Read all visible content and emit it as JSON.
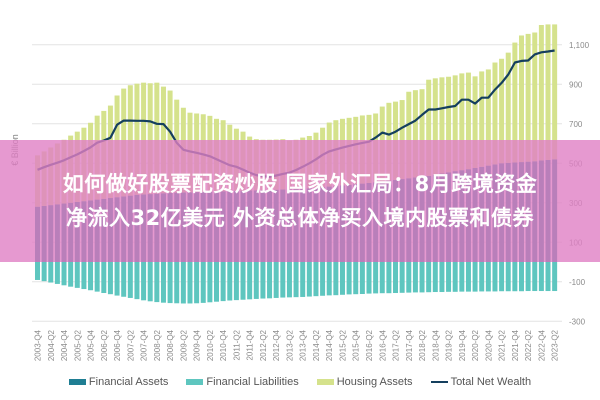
{
  "chart_data": {
    "type": "bar",
    "stacked": true,
    "ylabel": "€ Billion",
    "ylim": [
      -300,
      1250
    ],
    "yticks": [
      1100,
      900,
      700,
      500,
      300,
      100,
      -100,
      -300
    ],
    "ytick_labels": [
      "1,100",
      "900",
      "700",
      "500",
      "300",
      "100",
      "-100",
      "-300"
    ],
    "grid": true,
    "legend_position": "bottom",
    "start_quarter": "2003-Q4",
    "xtick_labels": [
      "2003-Q4",
      "2004-Q2",
      "2004-Q4",
      "2005-Q2",
      "2005-Q4",
      "2006-Q2",
      "2006-Q4",
      "2007-Q2",
      "2007-Q4",
      "2008-Q2",
      "2008-Q4",
      "2009-Q2",
      "2009-Q4",
      "2010-Q2",
      "2010-Q4",
      "2011-Q2",
      "2011-Q4",
      "2012-Q2",
      "2012-Q4",
      "2013-Q2",
      "2013-Q4",
      "2014-Q2",
      "2014-Q4",
      "2015-Q2",
      "2015-Q4",
      "2016-Q2",
      "2016-Q4",
      "2017-Q2",
      "2017-Q4",
      "2018-Q2",
      "2018-Q4",
      "2019-Q2",
      "2019-Q4",
      "2020-Q2",
      "2020-Q4",
      "2021-Q2",
      "2021-Q4",
      "2022-Q2",
      "2022-Q4",
      "2023-Q2"
    ],
    "series": [
      {
        "name": "Financial Assets",
        "kind": "bar",
        "color": "#1f7e93",
        "values": [
          280,
          284,
          288,
          292,
          296,
          300,
          304,
          308,
          312,
          316,
          320,
          324,
          328,
          332,
          336,
          340,
          342,
          344,
          346,
          348,
          350,
          351,
          352,
          353,
          354,
          355,
          356,
          357,
          358,
          359,
          360,
          361,
          362,
          363,
          364,
          365,
          366,
          367,
          368,
          369,
          370,
          373,
          376,
          379,
          382,
          385,
          388,
          391,
          394,
          397,
          400,
          404,
          408,
          412,
          416,
          420,
          424,
          428,
          430,
          436,
          442,
          448,
          454,
          460,
          465,
          470,
          476,
          482,
          488,
          494,
          500,
          502,
          504,
          506,
          508,
          510,
          514,
          517,
          520
        ]
      },
      {
        "name": "Financial Liabilities",
        "kind": "bar",
        "color": "#5ec6bf",
        "values": [
          -91,
          -97,
          -104,
          -111,
          -118,
          -125,
          -131,
          -137,
          -143,
          -150,
          -157,
          -163,
          -170,
          -176,
          -182,
          -188,
          -194,
          -199,
          -203,
          -206,
          -208,
          -209,
          -210,
          -210,
          -209,
          -207,
          -204,
          -201,
          -198,
          -195,
          -193,
          -191,
          -189,
          -187,
          -185,
          -184,
          -182,
          -180,
          -179,
          -178,
          -177,
          -175,
          -173,
          -171,
          -169,
          -168,
          -166,
          -164,
          -163,
          -162,
          -160,
          -159,
          -158,
          -158,
          -157,
          -156,
          -155,
          -154,
          -154,
          -153,
          -152,
          -152,
          -151,
          -151,
          -150,
          -150,
          -150,
          -149,
          -149,
          -149,
          -148,
          -148,
          -148,
          -148,
          -147,
          -147,
          -147,
          -147,
          -147
        ]
      },
      {
        "name": "Housing Assets",
        "kind": "bar",
        "color": "#d5e28c",
        "values": [
          260,
          276,
          292,
          308,
          323,
          340,
          356,
          372,
          393,
          425,
          445,
          468,
          515,
          546,
          559,
          563,
          566,
          561,
          562,
          540,
          518,
          471,
          429,
          403,
          398,
          393,
          384,
          368,
          360,
          336,
          315,
          299,
          273,
          259,
          255,
          254,
          254,
          255,
          247,
          250,
          260,
          265,
          279,
          301,
          324,
          333,
          337,
          339,
          341,
          345,
          345,
          348,
          379,
          394,
          396,
          400,
          438,
          442,
          445,
          487,
          488,
          487,
          484,
          485,
          490,
          489,
          464,
          483,
          487,
          516,
          529,
          558,
          607,
          641,
          647,
          652,
          686,
          686,
          683
        ]
      },
      {
        "name": "Total Net Wealth",
        "kind": "line",
        "color": "#153f5e",
        "values": [
          467,
          480,
          492,
          503,
          515,
          530,
          545,
          562,
          580,
          604,
          615,
          629,
          695,
          716,
          716,
          715,
          715,
          712,
          700,
          698,
          660,
          604,
          568,
          560,
          553,
          545,
          535,
          520,
          505,
          490,
          482,
          468,
          452,
          440,
          435,
          431,
          438,
          446,
          452,
          466,
          482,
          500,
          520,
          543,
          560,
          570,
          579,
          588,
          596,
          603,
          609,
          630,
          655,
          645,
          660,
          680,
          698,
          716,
          745,
          772,
          772,
          778,
          785,
          790,
          822,
          822,
          802,
          832,
          832,
          873,
          907,
          949,
          1010,
          1018,
          1020,
          1051,
          1062,
          1066,
          1071
        ]
      }
    ]
  },
  "legend": [
    {
      "label": "Financial Assets",
      "color": "#1f7e93",
      "shape": "bar"
    },
    {
      "label": "Financial Liabilities",
      "color": "#5ec6bf",
      "shape": "bar"
    },
    {
      "label": "Housing Assets",
      "color": "#d5e28c",
      "shape": "bar"
    },
    {
      "label": "Total Net Wealth",
      "color": "#153f5e",
      "shape": "line"
    }
  ],
  "banner": {
    "line1": "如何做好股票配资炒股 国家外汇局：8月跨境资金",
    "line2": "净流入32亿美元 外资总体净买入境内股票和债券",
    "color": "#e080c4"
  }
}
